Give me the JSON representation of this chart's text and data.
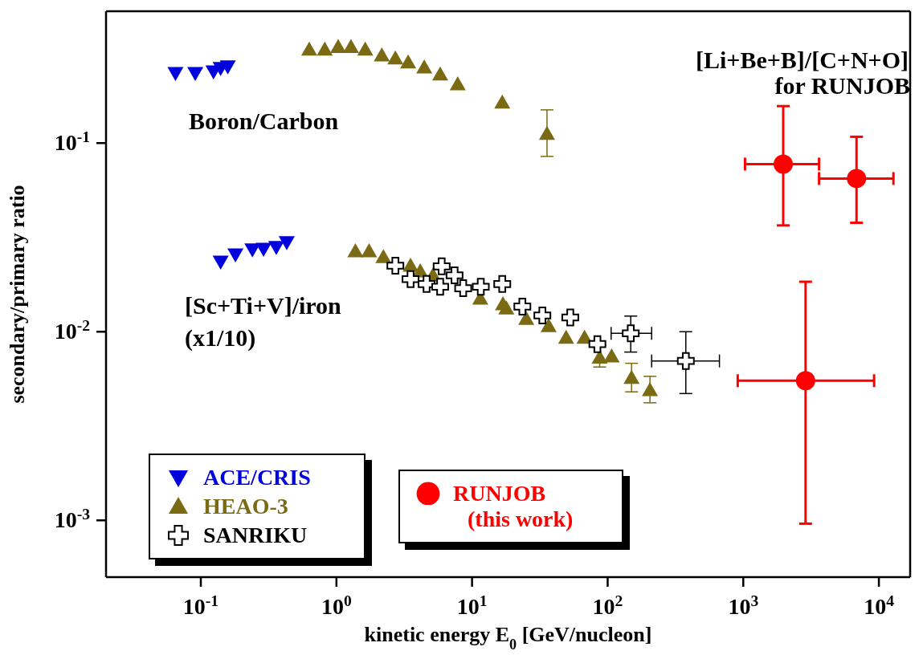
{
  "chart_data": {
    "type": "scatter",
    "xlabel": "kinetic energy E$_{0}$ [GeV/nucleon]",
    "ylabel": "secondary/primary ratio",
    "log": "xy",
    "xlim": [
      0.02,
      17000
    ],
    "ylim": [
      0.0005,
      0.5
    ],
    "xticks": [
      {
        "value": 0.1,
        "label": "10$^{-1}$"
      },
      {
        "value": 1,
        "label": "10$^{0}$"
      },
      {
        "value": 10,
        "label": "10$^{1}$"
      },
      {
        "value": 100,
        "label": "10$^{2}$"
      },
      {
        "value": 1000,
        "label": "10$^{3}$"
      },
      {
        "value": 10000,
        "label": "10$^{4}$"
      }
    ],
    "yticks": [
      {
        "value": 0.001,
        "label": "10$^{-3}$"
      },
      {
        "value": 0.01,
        "label": "10$^{-2}$"
      },
      {
        "value": 0.1,
        "label": "10$^{-1}$"
      }
    ],
    "legend": "bottom left",
    "annotations": [
      "Boron/Carbon",
      "[Sc+Ti+V]/iron",
      "(x1/10)",
      "[Li+Be+B]/[C+N+O]",
      "for RUNJOB"
    ],
    "series": [
      {
        "name": "ACE/CRIS",
        "color": "#0000dd",
        "marker": "triangle-down",
        "x": [
          0.065,
          0.091,
          0.124,
          0.14,
          0.158,
          0.14,
          0.18,
          0.24,
          0.29,
          0.36,
          0.43
        ],
        "values": [
          0.235,
          0.235,
          0.24,
          0.25,
          0.255,
          0.0235,
          0.0257,
          0.0273,
          0.0275,
          0.0281,
          0.0298
        ]
      },
      {
        "name": "HEAO-3",
        "color": "#7a6a14",
        "marker": "triangle",
        "x": [
          0.63,
          0.82,
          1.03,
          1.28,
          1.63,
          2.16,
          2.72,
          3.38,
          4.44,
          5.82,
          7.84,
          16.7,
          35.7,
          1.38,
          1.74,
          2.22,
          3.52,
          4.15,
          5.15,
          8.6,
          11.5,
          16.9,
          17.9,
          25.1,
          36.7,
          49.4,
          67.5,
          87.3,
          107,
          150,
          205
        ],
        "values": [
          0.313,
          0.313,
          0.323,
          0.323,
          0.313,
          0.292,
          0.281,
          0.268,
          0.252,
          0.231,
          0.205,
          0.164,
          0.112,
          0.0267,
          0.0267,
          0.0249,
          0.0224,
          0.0209,
          0.0199,
          null,
          0.015,
          0.014,
          0.0133,
          0.0117,
          0.0107,
          0.0093,
          0.0093,
          0.0073,
          0.0074,
          0.0057,
          0.0049
        ],
        "errors": [
          null,
          null,
          null,
          null,
          null,
          null,
          null,
          null,
          null,
          null,
          null,
          null,
          [
            0.085,
            0.15
          ],
          null,
          null,
          null,
          null,
          null,
          null,
          null,
          null,
          null,
          null,
          null,
          null,
          null,
          null,
          [
            0.0065,
            0.0085
          ],
          null,
          [
            0.0048,
            0.0068
          ],
          [
            0.0042,
            0.0058
          ]
        ]
      },
      {
        "name": "SANRIKU",
        "color": "#000000",
        "marker": "cross",
        "x": [
          2.72,
          3.52,
          4.62,
          5.97,
          5.82,
          7.43,
          8.6,
          11.6,
          16.7,
          23.5,
          33,
          53,
          84,
          148,
          377
        ],
        "values": [
          0.0224,
          0.019,
          0.0179,
          0.0222,
          0.0173,
          0.0199,
          0.017,
          0.0173,
          0.0179,
          0.0136,
          0.0122,
          0.0119,
          0.0086,
          0.0098,
          0.007
        ],
        "errors": [
          null,
          null,
          null,
          null,
          null,
          null,
          null,
          null,
          null,
          null,
          null,
          null,
          null,
          [
            0.0078,
            0.0121
          ],
          [
            0.0047,
            0.01
          ]
        ],
        "xerrors": [
          null,
          null,
          null,
          null,
          null,
          null,
          null,
          null,
          null,
          null,
          null,
          null,
          null,
          [
            106,
            211
          ],
          [
            211,
            667
          ]
        ]
      },
      {
        "name": "RUNJOB\n(this work)",
        "color": "#ff0000",
        "marker": "circle",
        "x": [
          1970,
          6840,
          2880
        ],
        "values": [
          0.0774,
          0.0649,
          0.0055
        ],
        "errors": [
          [
            0.0366,
            0.157
          ],
          [
            0.0378,
            0.108
          ],
          [
            0.00096,
            0.0184
          ]
        ],
        "xerrors": [
          [
            1030,
            3620
          ],
          [
            3620,
            12800
          ],
          [
            910,
            9220
          ]
        ]
      }
    ]
  }
}
